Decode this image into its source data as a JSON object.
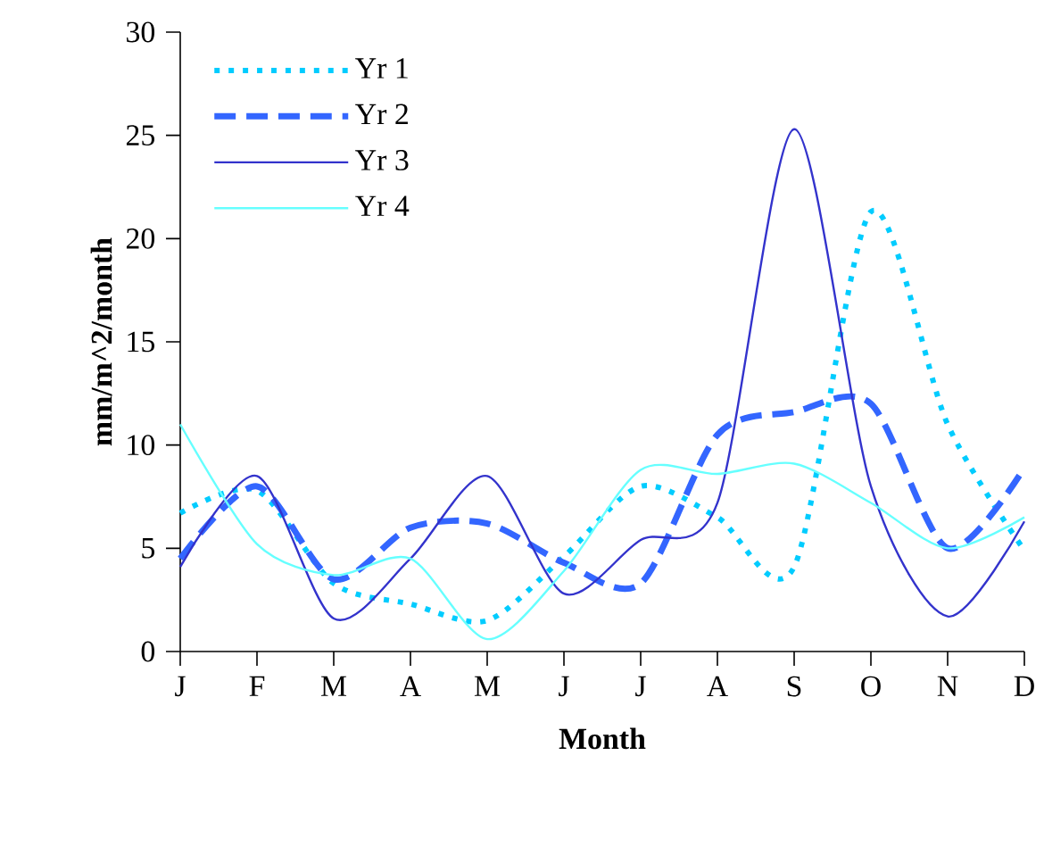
{
  "chart_data": {
    "type": "line",
    "xlabel": "Month",
    "ylabel": "mm/m^2/month",
    "categories": [
      "J",
      "F",
      "M",
      "A",
      "M",
      "J",
      "J",
      "A",
      "S",
      "O",
      "N",
      "D"
    ],
    "series": [
      {
        "name": "Yr 1",
        "color": "#00ccff",
        "line_style": "dotted",
        "values": [
          6.7,
          7.8,
          3.3,
          2.3,
          1.5,
          4.6,
          8.0,
          6.5,
          4.1,
          21.3,
          11.0,
          4.9
        ]
      },
      {
        "name": "Yr 2",
        "color": "#3366ff",
        "line_style": "dashed",
        "values": [
          4.5,
          8.0,
          3.5,
          6.0,
          6.2,
          4.3,
          3.3,
          10.5,
          11.6,
          12.0,
          5.0,
          8.9
        ]
      },
      {
        "name": "Yr 3",
        "color": "#3333cc",
        "line_style": "solid",
        "values": [
          4.1,
          8.5,
          1.6,
          4.5,
          8.5,
          2.8,
          5.4,
          7.2,
          25.3,
          8.0,
          1.7,
          6.3
        ]
      },
      {
        "name": "Yr 4",
        "color": "#66ffff",
        "line_style": "solid",
        "values": [
          11.0,
          5.2,
          3.7,
          4.5,
          0.6,
          3.9,
          8.8,
          8.6,
          9.1,
          7.2,
          5.0,
          6.5
        ]
      }
    ],
    "ylim": [
      0,
      30
    ],
    "yticks": [
      0,
      5,
      10,
      15,
      20,
      25,
      30
    ],
    "legend": "top left",
    "grid": false,
    "marker": "none"
  }
}
